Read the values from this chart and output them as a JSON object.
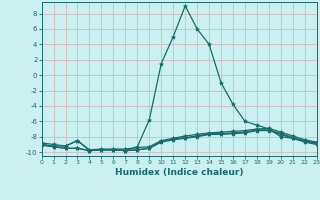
{
  "xlabel": "Humidex (Indice chaleur)",
  "background_color": "#caf0ef",
  "grid_color": "#d8b8bc",
  "line_color": "#1a6b6b",
  "xlim": [
    0,
    23
  ],
  "ylim": [
    -10.5,
    9.5
  ],
  "yticks": [
    -10,
    -8,
    -6,
    -4,
    -2,
    0,
    2,
    4,
    6,
    8
  ],
  "xticks": [
    0,
    1,
    2,
    3,
    4,
    5,
    6,
    7,
    8,
    9,
    10,
    11,
    12,
    13,
    14,
    15,
    16,
    17,
    18,
    19,
    20,
    21,
    22,
    23
  ],
  "lines": [
    {
      "x": [
        0,
        1,
        2,
        3,
        4,
        5,
        6,
        7,
        8,
        9,
        10,
        11,
        12,
        13,
        14,
        15,
        16,
        17,
        18,
        19,
        20,
        21,
        22,
        23
      ],
      "y": [
        -9.0,
        -9.2,
        -9.2,
        -8.5,
        -9.8,
        -9.7,
        -9.7,
        -9.8,
        -9.3,
        -5.8,
        1.5,
        5.0,
        9.0,
        6.0,
        4.0,
        -1.0,
        -3.8,
        -6.0,
        -6.5,
        -7.0,
        -8.0,
        -8.2,
        -8.5,
        -8.8
      ]
    },
    {
      "x": [
        0,
        1,
        2,
        3,
        4,
        5,
        6,
        7,
        8,
        9,
        10,
        11,
        12,
        13,
        14,
        15,
        16,
        17,
        18,
        19,
        20,
        21,
        22,
        23
      ],
      "y": [
        -8.8,
        -9.0,
        -9.2,
        -8.5,
        -9.7,
        -9.6,
        -9.6,
        -9.6,
        -9.4,
        -9.3,
        -8.5,
        -8.2,
        -7.9,
        -7.7,
        -7.5,
        -7.4,
        -7.3,
        -7.2,
        -7.0,
        -6.9,
        -7.4,
        -7.9,
        -8.4,
        -8.7
      ]
    },
    {
      "x": [
        0,
        1,
        2,
        3,
        4,
        5,
        6,
        7,
        8,
        9,
        10,
        11,
        12,
        13,
        14,
        15,
        16,
        17,
        18,
        19,
        20,
        21,
        22,
        23
      ],
      "y": [
        -9.0,
        -9.3,
        -9.5,
        -9.5,
        -9.8,
        -9.7,
        -9.7,
        -9.8,
        -9.7,
        -9.5,
        -8.6,
        -8.3,
        -8.1,
        -7.9,
        -7.6,
        -7.6,
        -7.5,
        -7.4,
        -7.1,
        -7.1,
        -7.6,
        -8.1,
        -8.6,
        -8.9
      ]
    },
    {
      "x": [
        0,
        1,
        2,
        3,
        4,
        5,
        6,
        7,
        8,
        9,
        10,
        11,
        12,
        13,
        14,
        15,
        16,
        17,
        18,
        19,
        20,
        21,
        22,
        23
      ],
      "y": [
        -9.1,
        -9.3,
        -9.5,
        -9.5,
        -9.8,
        -9.7,
        -9.7,
        -9.8,
        -9.7,
        -9.5,
        -8.7,
        -8.4,
        -8.2,
        -8.0,
        -7.7,
        -7.7,
        -7.6,
        -7.5,
        -7.2,
        -7.2,
        -7.7,
        -8.2,
        -8.7,
        -9.0
      ]
    }
  ]
}
